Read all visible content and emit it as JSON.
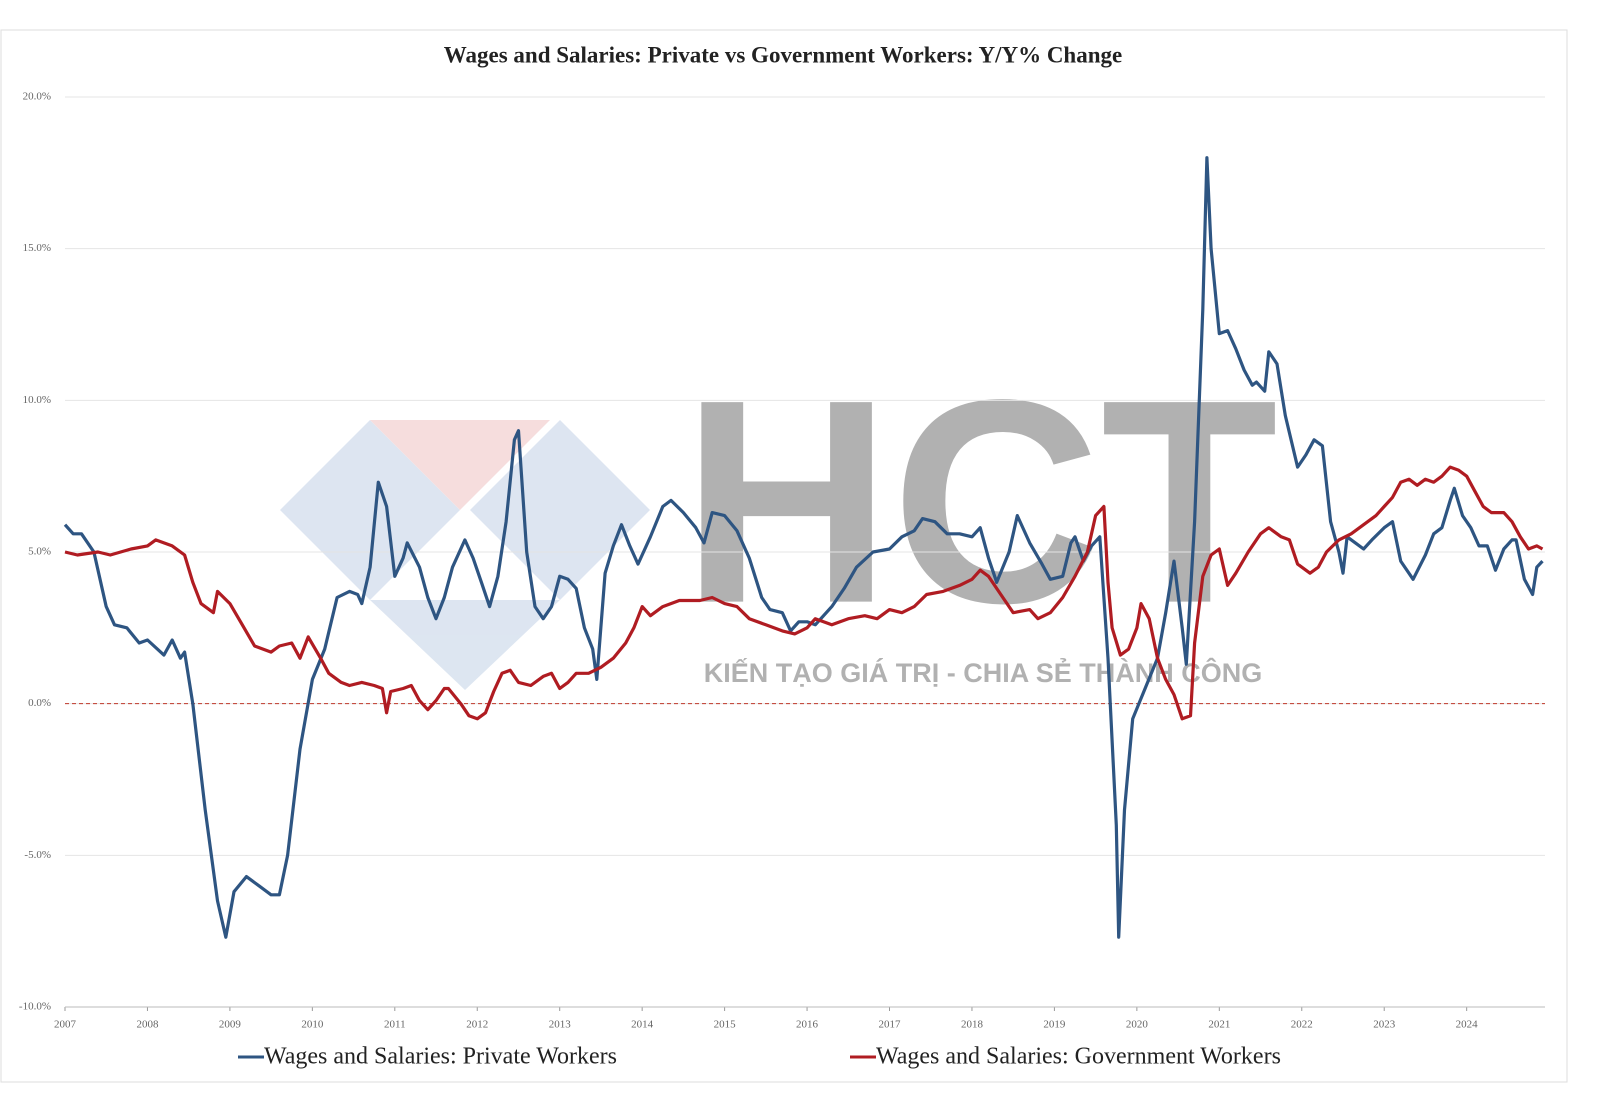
{
  "chart_data": {
    "type": "line",
    "title": "Wages and Salaries: Private vs Government Workers: Y/Y% Change",
    "watermark": {
      "logo": "HCT",
      "slogan": "KIẾN TẠO GIÁ TRỊ - CHIA SẺ THÀNH CÔNG"
    },
    "xlim": [
      2007,
      2024.95
    ],
    "xticks": [
      2007,
      2008,
      2009,
      2010,
      2011,
      2012,
      2013,
      2014,
      2015,
      2016,
      2017,
      2018,
      2019,
      2020,
      2021,
      2022,
      2023,
      2024
    ],
    "ylim": [
      -10,
      20
    ],
    "yticks": [
      {
        "value": -10,
        "label": "-10.0%"
      },
      {
        "value": -5,
        "label": "-5.0%"
      },
      {
        "value": 0,
        "label": "0.0%"
      },
      {
        "value": 5,
        "label": "5.0%"
      },
      {
        "value": 10,
        "label": "10.0%"
      },
      {
        "value": 15,
        "label": "15.0%"
      },
      {
        "value": 20,
        "label": "20.0%"
      }
    ],
    "grid": true,
    "legend": "bottom",
    "series": [
      {
        "name": "Wages and Salaries: Private Workers",
        "color": "#2e5582",
        "x": [
          2007.0,
          2007.1,
          2007.2,
          2007.35,
          2007.5,
          2007.6,
          2007.75,
          2007.9,
          2008.0,
          2008.2,
          2008.3,
          2008.4,
          2008.45,
          2008.55,
          2008.7,
          2008.85,
          2008.95,
          2009.05,
          2009.2,
          2009.35,
          2009.5,
          2009.6,
          2009.7,
          2009.85,
          2010.0,
          2010.15,
          2010.3,
          2010.45,
          2010.55,
          2010.6,
          2010.7,
          2010.8,
          2010.9,
          2011.0,
          2011.1,
          2011.15,
          2011.3,
          2011.4,
          2011.5,
          2011.6,
          2011.7,
          2011.85,
          2011.95,
          2012.05,
          2012.15,
          2012.25,
          2012.35,
          2012.45,
          2012.5,
          2012.6,
          2012.7,
          2012.8,
          2012.9,
          2013.0,
          2013.1,
          2013.2,
          2013.3,
          2013.4,
          2013.45,
          2013.55,
          2013.65,
          2013.75,
          2013.85,
          2013.95,
          2014.1,
          2014.25,
          2014.35,
          2014.5,
          2014.65,
          2014.75,
          2014.85,
          2015.0,
          2015.15,
          2015.3,
          2015.45,
          2015.55,
          2015.7,
          2015.8,
          2015.9,
          2016.0,
          2016.1,
          2016.3,
          2016.45,
          2016.6,
          2016.8,
          2017.0,
          2017.15,
          2017.3,
          2017.4,
          2017.55,
          2017.7,
          2017.85,
          2018.0,
          2018.1,
          2018.2,
          2018.3,
          2018.45,
          2018.55,
          2018.7,
          2018.85,
          2018.95,
          2019.1,
          2019.2,
          2019.25,
          2019.35,
          2019.45,
          2019.55,
          2019.65,
          2019.75,
          2019.78,
          2019.85,
          2019.95,
          2020.1,
          2020.25,
          2020.35,
          2020.45,
          2020.55,
          2020.6,
          2020.7,
          2020.8,
          2020.85,
          2020.9,
          2021.0,
          2021.1,
          2021.2,
          2021.3,
          2021.4,
          2021.45,
          2021.55,
          2021.6,
          2021.7,
          2021.8,
          2021.95,
          2022.05,
          2022.15,
          2022.25,
          2022.35,
          2022.45,
          2022.5,
          2022.55,
          2022.65,
          2022.75,
          2022.85,
          2023.0,
          2023.1,
          2023.2,
          2023.35,
          2023.5,
          2023.6,
          2023.7,
          2023.8,
          2023.85,
          2023.95,
          2024.05,
          2024.15,
          2024.25,
          2024.35,
          2024.45,
          2024.55,
          2024.6,
          2024.7,
          2024.8,
          2024.85,
          2024.92
        ],
        "values": [
          5.9,
          5.6,
          5.6,
          5.0,
          3.2,
          2.6,
          2.5,
          2.0,
          2.1,
          1.6,
          2.1,
          1.5,
          1.7,
          0.0,
          -3.5,
          -6.5,
          -7.7,
          -6.2,
          -5.7,
          -6.0,
          -6.3,
          -6.3,
          -5.0,
          -1.5,
          0.8,
          1.8,
          3.5,
          3.7,
          3.6,
          3.3,
          4.5,
          7.3,
          6.5,
          4.2,
          4.8,
          5.3,
          4.5,
          3.5,
          2.8,
          3.5,
          4.5,
          5.4,
          4.8,
          4.0,
          3.2,
          4.2,
          6.0,
          8.7,
          9.0,
          5.0,
          3.2,
          2.8,
          3.2,
          4.2,
          4.1,
          3.8,
          2.5,
          1.8,
          0.8,
          4.3,
          5.2,
          5.9,
          5.2,
          4.6,
          5.5,
          6.5,
          6.7,
          6.3,
          5.8,
          5.3,
          6.3,
          6.2,
          5.7,
          4.8,
          3.5,
          3.1,
          3.0,
          2.4,
          2.7,
          2.7,
          2.6,
          3.2,
          3.8,
          4.5,
          5.0,
          5.1,
          5.5,
          5.7,
          6.1,
          6.0,
          5.6,
          5.6,
          5.5,
          5.8,
          4.8,
          4.0,
          5.0,
          6.2,
          5.3,
          4.6,
          4.1,
          4.2,
          5.3,
          5.5,
          4.7,
          5.2,
          5.5,
          1.5,
          -4.0,
          -7.7,
          -3.5,
          -0.5,
          0.5,
          1.5,
          3.0,
          4.7,
          2.5,
          1.3,
          6.0,
          13.0,
          18.0,
          15.0,
          12.2,
          12.3,
          11.7,
          11.0,
          10.5,
          10.6,
          10.3,
          11.6,
          11.2,
          9.5,
          7.8,
          8.2,
          8.7,
          8.5,
          6.0,
          5.0,
          4.3,
          5.5,
          5.3,
          5.1,
          5.4,
          5.8,
          6.0,
          4.7,
          4.1,
          4.9,
          5.6,
          5.8,
          6.7,
          7.1,
          6.2,
          5.8,
          5.2,
          5.2,
          4.4,
          5.1,
          5.4,
          5.4,
          4.1,
          3.6,
          4.5,
          4.7
        ]
      },
      {
        "name": "Wages and Salaries: Government Workers",
        "color": "#b01c22",
        "x": [
          2007.0,
          2007.15,
          2007.4,
          2007.55,
          2007.8,
          2008.0,
          2008.1,
          2008.3,
          2008.45,
          2008.55,
          2008.65,
          2008.8,
          2008.85,
          2009.0,
          2009.15,
          2009.3,
          2009.5,
          2009.6,
          2009.75,
          2009.85,
          2009.95,
          2010.1,
          2010.2,
          2010.35,
          2010.45,
          2010.6,
          2010.75,
          2010.85,
          2010.9,
          2010.95,
          2011.1,
          2011.2,
          2011.3,
          2011.4,
          2011.5,
          2011.6,
          2011.65,
          2011.8,
          2011.9,
          2012.0,
          2012.1,
          2012.2,
          2012.3,
          2012.4,
          2012.5,
          2012.65,
          2012.8,
          2012.9,
          2013.0,
          2013.1,
          2013.2,
          2013.35,
          2013.5,
          2013.65,
          2013.8,
          2013.9,
          2014.0,
          2014.1,
          2014.25,
          2014.45,
          2014.7,
          2014.85,
          2015.0,
          2015.15,
          2015.3,
          2015.5,
          2015.7,
          2015.85,
          2016.0,
          2016.1,
          2016.3,
          2016.5,
          2016.7,
          2016.85,
          2017.0,
          2017.15,
          2017.3,
          2017.45,
          2017.65,
          2017.85,
          2018.0,
          2018.1,
          2018.2,
          2018.35,
          2018.5,
          2018.7,
          2018.8,
          2018.95,
          2019.1,
          2019.25,
          2019.4,
          2019.5,
          2019.6,
          2019.65,
          2019.7,
          2019.8,
          2019.9,
          2020.0,
          2020.05,
          2020.15,
          2020.25,
          2020.35,
          2020.45,
          2020.55,
          2020.65,
          2020.7,
          2020.8,
          2020.9,
          2021.0,
          2021.1,
          2021.2,
          2021.35,
          2021.5,
          2021.6,
          2021.75,
          2021.85,
          2021.95,
          2022.1,
          2022.2,
          2022.3,
          2022.45,
          2022.6,
          2022.75,
          2022.9,
          2023.0,
          2023.1,
          2023.2,
          2023.3,
          2023.4,
          2023.5,
          2023.6,
          2023.7,
          2023.8,
          2023.9,
          2024.0,
          2024.1,
          2024.2,
          2024.3,
          2024.45,
          2024.55,
          2024.65,
          2024.75,
          2024.85,
          2024.92
        ],
        "values": [
          5.0,
          4.9,
          5.0,
          4.9,
          5.1,
          5.2,
          5.4,
          5.2,
          4.9,
          4.0,
          3.3,
          3.0,
          3.7,
          3.3,
          2.6,
          1.9,
          1.7,
          1.9,
          2.0,
          1.5,
          2.2,
          1.5,
          1.0,
          0.7,
          0.6,
          0.7,
          0.6,
          0.5,
          -0.3,
          0.4,
          0.5,
          0.6,
          0.1,
          -0.2,
          0.1,
          0.5,
          0.5,
          0.0,
          -0.4,
          -0.5,
          -0.3,
          0.4,
          1.0,
          1.1,
          0.7,
          0.6,
          0.9,
          1.0,
          0.5,
          0.7,
          1.0,
          1.0,
          1.2,
          1.5,
          2.0,
          2.5,
          3.2,
          2.9,
          3.2,
          3.4,
          3.4,
          3.5,
          3.3,
          3.2,
          2.8,
          2.6,
          2.4,
          2.3,
          2.5,
          2.8,
          2.6,
          2.8,
          2.9,
          2.8,
          3.1,
          3.0,
          3.2,
          3.6,
          3.7,
          3.9,
          4.1,
          4.4,
          4.2,
          3.6,
          3.0,
          3.1,
          2.8,
          3.0,
          3.5,
          4.2,
          5.0,
          6.2,
          6.5,
          4.0,
          2.5,
          1.6,
          1.8,
          2.5,
          3.3,
          2.8,
          1.5,
          0.8,
          0.3,
          -0.5,
          -0.4,
          2.0,
          4.2,
          4.9,
          5.1,
          3.9,
          4.3,
          5.0,
          5.6,
          5.8,
          5.5,
          5.4,
          4.6,
          4.3,
          4.5,
          5.0,
          5.4,
          5.6,
          5.9,
          6.2,
          6.5,
          6.8,
          7.3,
          7.4,
          7.2,
          7.4,
          7.3,
          7.5,
          7.8,
          7.7,
          7.5,
          7.0,
          6.5,
          6.3,
          6.3,
          6.0,
          5.5,
          5.1,
          5.2,
          5.1
        ]
      }
    ]
  }
}
